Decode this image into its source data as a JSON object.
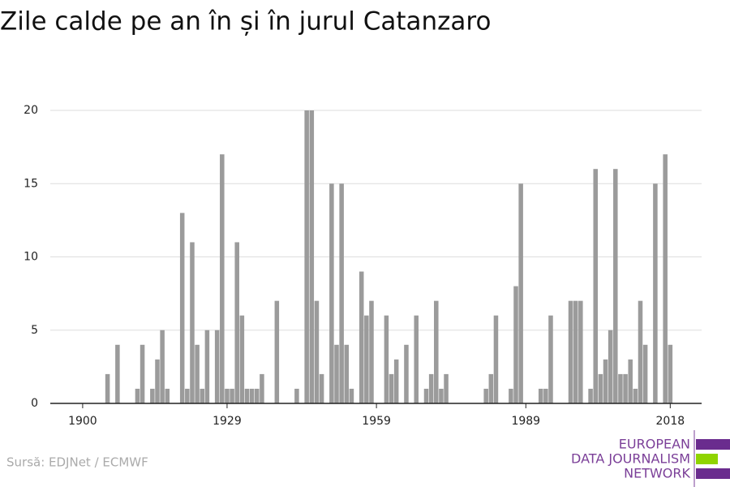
{
  "chart_data": {
    "type": "bar",
    "title": "Zile calde pe an în și în jurul Catanzaro",
    "source": "Sursă: EDJNet / ECMWF",
    "logo": [
      "EUROPEAN",
      "DATA JOURNALISM",
      "NETWORK"
    ],
    "color": "#9b9b9b",
    "x": [
      1905,
      1907,
      1911,
      1912,
      1914,
      1915,
      1916,
      1917,
      1920,
      1921,
      1922,
      1923,
      1924,
      1925,
      1927,
      1928,
      1929,
      1930,
      1931,
      1932,
      1933,
      1934,
      1935,
      1936,
      1939,
      1943,
      1945,
      1946,
      1947,
      1948,
      1950,
      1951,
      1952,
      1953,
      1954,
      1956,
      1957,
      1958,
      1961,
      1962,
      1963,
      1965,
      1967,
      1969,
      1970,
      1971,
      1972,
      1973,
      1981,
      1982,
      1983,
      1986,
      1987,
      1988,
      1992,
      1993,
      1994,
      1998,
      1999,
      2000,
      2002,
      2003,
      2004,
      2005,
      2006,
      2007,
      2008,
      2009,
      2010,
      2011,
      2012,
      2013,
      2015,
      2017,
      2018
    ],
    "values": [
      2,
      4,
      1,
      4,
      1,
      3,
      5,
      1,
      13,
      1,
      11,
      4,
      1,
      5,
      5,
      17,
      1,
      1,
      11,
      6,
      1,
      1,
      1,
      2,
      7,
      1,
      20,
      20,
      7,
      2,
      15,
      4,
      15,
      4,
      1,
      9,
      6,
      7,
      6,
      2,
      3,
      4,
      6,
      1,
      2,
      7,
      1,
      2,
      1,
      2,
      6,
      1,
      8,
      15,
      1,
      1,
      6,
      7,
      7,
      7,
      1,
      16,
      2,
      3,
      5,
      16,
      2,
      2,
      3,
      1,
      7,
      4,
      15,
      17,
      4
    ],
    "xlim": [
      1893.5,
      2024.3
    ],
    "xticks": [
      1900,
      1929,
      1959,
      1989,
      2018
    ],
    "ylim": [
      0,
      20
    ],
    "yticks": [
      0,
      5,
      10,
      15,
      20
    ],
    "grid": true
  }
}
